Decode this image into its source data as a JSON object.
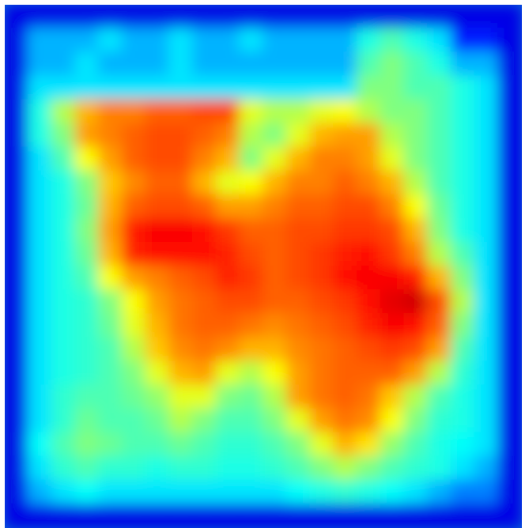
{
  "chart_data": {
    "type": "heatmap",
    "title": "",
    "xlabel": "",
    "ylabel": "",
    "colormap": "jet",
    "colors": {
      "low": "#0a6fd6",
      "mid_low": "#22d0a0",
      "mid": "#f5f000",
      "mid_high": "#ffa500",
      "high": "#e62800"
    },
    "grid_shape": [
      22,
      22
    ],
    "value_range": [
      0,
      1
    ],
    "values": [
      [
        0.1,
        0.1,
        0.1,
        0.1,
        0.1,
        0.1,
        0.1,
        0.1,
        0.1,
        0.1,
        0.1,
        0.1,
        0.1,
        0.1,
        0.1,
        0.1,
        0.1,
        0.1,
        0.1,
        0.1,
        0.1,
        0.1
      ],
      [
        0.1,
        0.3,
        0.3,
        0.3,
        0.35,
        0.3,
        0.3,
        0.35,
        0.3,
        0.3,
        0.35,
        0.3,
        0.3,
        0.3,
        0.3,
        0.4,
        0.45,
        0.4,
        0.35,
        0.15,
        0.15,
        0.1
      ],
      [
        0.1,
        0.3,
        0.3,
        0.35,
        0.3,
        0.3,
        0.3,
        0.35,
        0.3,
        0.3,
        0.3,
        0.3,
        0.3,
        0.3,
        0.3,
        0.45,
        0.5,
        0.45,
        0.4,
        0.3,
        0.3,
        0.1
      ],
      [
        0.1,
        0.35,
        0.35,
        0.35,
        0.35,
        0.35,
        0.35,
        0.35,
        0.35,
        0.35,
        0.35,
        0.35,
        0.35,
        0.35,
        0.35,
        0.5,
        0.5,
        0.45,
        0.45,
        0.4,
        0.35,
        0.1
      ],
      [
        0.1,
        0.4,
        0.55,
        0.7,
        0.75,
        0.75,
        0.78,
        0.78,
        0.8,
        0.8,
        0.6,
        0.55,
        0.55,
        0.6,
        0.62,
        0.55,
        0.5,
        0.5,
        0.45,
        0.4,
        0.35,
        0.1
      ],
      [
        0.1,
        0.4,
        0.5,
        0.72,
        0.75,
        0.78,
        0.8,
        0.8,
        0.78,
        0.75,
        0.55,
        0.5,
        0.6,
        0.7,
        0.72,
        0.72,
        0.55,
        0.5,
        0.45,
        0.4,
        0.35,
        0.1
      ],
      [
        0.1,
        0.35,
        0.45,
        0.62,
        0.72,
        0.78,
        0.8,
        0.8,
        0.75,
        0.7,
        0.5,
        0.6,
        0.7,
        0.75,
        0.75,
        0.72,
        0.6,
        0.5,
        0.45,
        0.4,
        0.35,
        0.1
      ],
      [
        0.1,
        0.35,
        0.4,
        0.5,
        0.68,
        0.74,
        0.78,
        0.78,
        0.7,
        0.6,
        0.62,
        0.7,
        0.75,
        0.75,
        0.78,
        0.75,
        0.7,
        0.55,
        0.45,
        0.4,
        0.35,
        0.1
      ],
      [
        0.1,
        0.35,
        0.4,
        0.48,
        0.7,
        0.78,
        0.8,
        0.8,
        0.78,
        0.72,
        0.72,
        0.75,
        0.78,
        0.78,
        0.8,
        0.8,
        0.75,
        0.62,
        0.48,
        0.4,
        0.35,
        0.1
      ],
      [
        0.1,
        0.35,
        0.4,
        0.5,
        0.72,
        0.85,
        0.88,
        0.88,
        0.86,
        0.82,
        0.78,
        0.78,
        0.8,
        0.8,
        0.82,
        0.82,
        0.8,
        0.7,
        0.5,
        0.4,
        0.35,
        0.1
      ],
      [
        0.1,
        0.35,
        0.4,
        0.48,
        0.7,
        0.84,
        0.86,
        0.86,
        0.86,
        0.84,
        0.8,
        0.78,
        0.8,
        0.82,
        0.85,
        0.86,
        0.82,
        0.75,
        0.55,
        0.45,
        0.35,
        0.1
      ],
      [
        0.1,
        0.35,
        0.4,
        0.45,
        0.62,
        0.72,
        0.75,
        0.78,
        0.8,
        0.84,
        0.82,
        0.78,
        0.8,
        0.82,
        0.86,
        0.88,
        0.88,
        0.85,
        0.7,
        0.5,
        0.35,
        0.1
      ],
      [
        0.1,
        0.35,
        0.4,
        0.42,
        0.5,
        0.62,
        0.72,
        0.76,
        0.78,
        0.8,
        0.8,
        0.78,
        0.78,
        0.8,
        0.82,
        0.86,
        0.9,
        0.92,
        0.8,
        0.55,
        0.35,
        0.1
      ],
      [
        0.1,
        0.35,
        0.4,
        0.42,
        0.48,
        0.6,
        0.7,
        0.76,
        0.78,
        0.78,
        0.76,
        0.74,
        0.76,
        0.78,
        0.8,
        0.84,
        0.88,
        0.86,
        0.78,
        0.5,
        0.35,
        0.1
      ],
      [
        0.1,
        0.35,
        0.4,
        0.42,
        0.45,
        0.55,
        0.68,
        0.74,
        0.76,
        0.74,
        0.7,
        0.7,
        0.74,
        0.76,
        0.78,
        0.8,
        0.82,
        0.8,
        0.72,
        0.45,
        0.35,
        0.1
      ],
      [
        0.1,
        0.35,
        0.4,
        0.42,
        0.45,
        0.5,
        0.6,
        0.7,
        0.72,
        0.6,
        0.55,
        0.62,
        0.72,
        0.76,
        0.78,
        0.78,
        0.78,
        0.72,
        0.55,
        0.42,
        0.35,
        0.1
      ],
      [
        0.1,
        0.35,
        0.42,
        0.45,
        0.45,
        0.48,
        0.52,
        0.6,
        0.6,
        0.5,
        0.48,
        0.55,
        0.72,
        0.76,
        0.78,
        0.76,
        0.68,
        0.55,
        0.45,
        0.4,
        0.35,
        0.1
      ],
      [
        0.1,
        0.35,
        0.42,
        0.48,
        0.45,
        0.45,
        0.48,
        0.55,
        0.5,
        0.45,
        0.45,
        0.5,
        0.6,
        0.72,
        0.76,
        0.74,
        0.62,
        0.5,
        0.42,
        0.4,
        0.35,
        0.1
      ],
      [
        0.1,
        0.38,
        0.45,
        0.5,
        0.48,
        0.45,
        0.45,
        0.48,
        0.45,
        0.42,
        0.42,
        0.45,
        0.5,
        0.6,
        0.7,
        0.65,
        0.52,
        0.45,
        0.4,
        0.38,
        0.35,
        0.1
      ],
      [
        0.1,
        0.35,
        0.42,
        0.45,
        0.42,
        0.42,
        0.4,
        0.42,
        0.42,
        0.4,
        0.4,
        0.42,
        0.45,
        0.5,
        0.55,
        0.5,
        0.45,
        0.42,
        0.4,
        0.35,
        0.3,
        0.1
      ],
      [
        0.1,
        0.3,
        0.35,
        0.38,
        0.35,
        0.35,
        0.35,
        0.35,
        0.35,
        0.35,
        0.35,
        0.35,
        0.38,
        0.4,
        0.42,
        0.4,
        0.38,
        0.35,
        0.3,
        0.25,
        0.25,
        0.1
      ],
      [
        0.1,
        0.1,
        0.1,
        0.1,
        0.1,
        0.1,
        0.1,
        0.1,
        0.1,
        0.1,
        0.1,
        0.1,
        0.1,
        0.1,
        0.1,
        0.1,
        0.1,
        0.1,
        0.1,
        0.1,
        0.1,
        0.1
      ]
    ]
  }
}
